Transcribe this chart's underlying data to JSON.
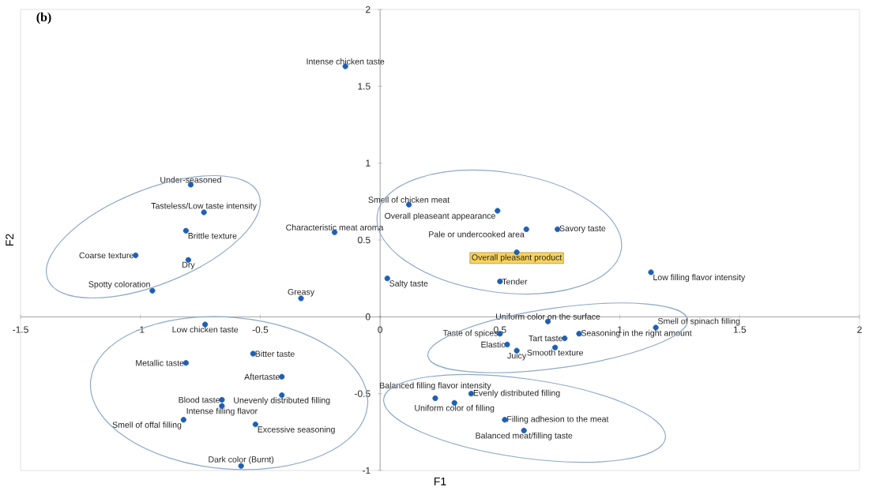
{
  "chart_data": {
    "type": "scatter",
    "title": "(b)",
    "xlabel": "F1",
    "ylabel": "F2",
    "xlim": [
      -1.5,
      2
    ],
    "ylim": [
      -1,
      2
    ],
    "xticks": [
      -1.5,
      -1,
      -0.5,
      0,
      0.5,
      1,
      1.5,
      2
    ],
    "yticks": [
      -1,
      -0.5,
      0,
      0.5,
      1,
      1.5,
      2
    ],
    "marker": "circle",
    "series": [
      {
        "color": "#1f5fb4",
        "x": [
          -0.145,
          -0.79,
          -0.735,
          -0.81,
          -0.19,
          -1.02,
          -0.8,
          -0.95,
          -0.33,
          -0.73,
          -0.53,
          -0.81,
          -0.41,
          -0.66,
          -0.66,
          -0.41,
          -0.82,
          -0.52,
          -0.58,
          0.12,
          0.49,
          0.61,
          0.74,
          0.57,
          0.03,
          0.5,
          1.13,
          0.7,
          1.15,
          0.5,
          0.77,
          0.83,
          0.53,
          0.57,
          0.73,
          0.23,
          0.31,
          0.38,
          0.52,
          0.6
        ],
        "values": [
          1.63,
          0.86,
          0.68,
          0.56,
          0.55,
          0.4,
          0.37,
          0.17,
          0.12,
          -0.05,
          -0.24,
          -0.3,
          -0.39,
          -0.54,
          -0.58,
          -0.51,
          -0.67,
          -0.7,
          -0.97,
          0.73,
          0.69,
          0.57,
          0.57,
          0.42,
          0.25,
          0.23,
          0.29,
          -0.03,
          -0.07,
          -0.11,
          -0.14,
          -0.11,
          -0.18,
          -0.22,
          -0.2,
          -0.53,
          -0.56,
          -0.5,
          -0.67,
          -0.74
        ]
      }
    ],
    "annotations": [
      {
        "text": "Intense chicken taste",
        "x": -0.145,
        "y": 1.63
      },
      {
        "text": "Under-seasoned",
        "x": -0.79,
        "y": 0.86
      },
      {
        "text": "Tasteless/Low taste intensity",
        "x": -0.735,
        "y": 0.68
      },
      {
        "text": "Brittle texture",
        "x": -0.81,
        "y": 0.56
      },
      {
        "text": "Characteristic meat aroma",
        "x": -0.19,
        "y": 0.55
      },
      {
        "text": "Coarse texture",
        "x": -1.02,
        "y": 0.4
      },
      {
        "text": "Dry",
        "x": -0.8,
        "y": 0.37
      },
      {
        "text": "Spotty coloration",
        "x": -0.95,
        "y": 0.17
      },
      {
        "text": "Greasy",
        "x": -0.33,
        "y": 0.12
      },
      {
        "text": "Low chicken taste",
        "x": -0.73,
        "y": -0.05
      },
      {
        "text": "Bitter taste",
        "x": -0.53,
        "y": -0.24
      },
      {
        "text": "Metallic taste",
        "x": -0.81,
        "y": -0.3
      },
      {
        "text": "Aftertaste",
        "x": -0.41,
        "y": -0.39
      },
      {
        "text": "Blood taste",
        "x": -0.66,
        "y": -0.54
      },
      {
        "text": "Intense filling flavor",
        "x": -0.66,
        "y": -0.58
      },
      {
        "text": "Unevenly distributed filling",
        "x": -0.41,
        "y": -0.51
      },
      {
        "text": "Smell of offal filling",
        "x": -0.82,
        "y": -0.67
      },
      {
        "text": "Excessive seasoning",
        "x": -0.52,
        "y": -0.7
      },
      {
        "text": "Dark color (Burnt)",
        "x": -0.58,
        "y": -0.97
      },
      {
        "text": "Smell of chicken meat",
        "x": 0.12,
        "y": 0.73
      },
      {
        "text": "Overall pleaseant appearance",
        "x": 0.49,
        "y": 0.69
      },
      {
        "text": "Pale or undercooked area",
        "x": 0.61,
        "y": 0.57
      },
      {
        "text": "Savory taste",
        "x": 0.74,
        "y": 0.57
      },
      {
        "text": "Overall pleasant product",
        "x": 0.57,
        "y": 0.42
      },
      {
        "text": "Salty taste",
        "x": 0.03,
        "y": 0.25
      },
      {
        "text": "Tender",
        "x": 0.5,
        "y": 0.23
      },
      {
        "text": "Low filling flavor intensity",
        "x": 1.13,
        "y": 0.29
      },
      {
        "text": "Uniform color on the surface",
        "x": 0.7,
        "y": -0.03
      },
      {
        "text": "Smell of spinach filling",
        "x": 1.15,
        "y": -0.07
      },
      {
        "text": "Taste of spices",
        "x": 0.5,
        "y": -0.11
      },
      {
        "text": "Tart taste",
        "x": 0.77,
        "y": -0.14
      },
      {
        "text": "Seasoning in the right amount",
        "x": 0.83,
        "y": -0.11
      },
      {
        "text": "Elastic",
        "x": 0.53,
        "y": -0.18
      },
      {
        "text": "Juicy",
        "x": 0.57,
        "y": -0.22
      },
      {
        "text": "Smooth texture",
        "x": 0.73,
        "y": -0.2
      },
      {
        "text": "Balanced filling flavor intensity",
        "x": 0.23,
        "y": -0.53
      },
      {
        "text": "Uniform color of filling",
        "x": 0.31,
        "y": -0.56
      },
      {
        "text": "Evenly distributed filling",
        "x": 0.38,
        "y": -0.5
      },
      {
        "text": "Filling adhesion to the meat",
        "x": 0.52,
        "y": -0.67
      },
      {
        "text": "Balanced meat/filling taste",
        "x": 0.6,
        "y": -0.74
      }
    ]
  }
}
